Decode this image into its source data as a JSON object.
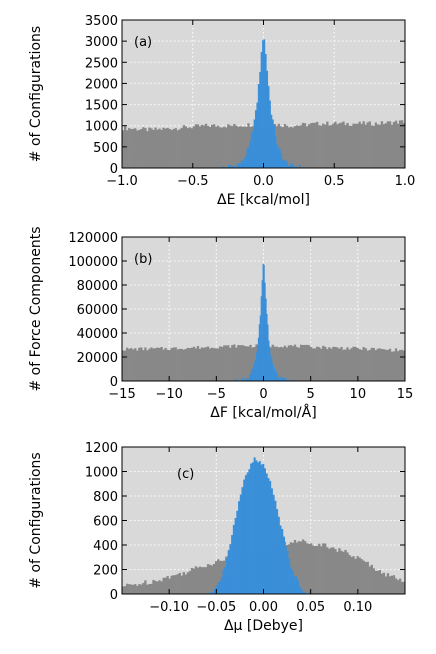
{
  "chart_data": [
    {
      "type": "bar",
      "panel_label": "(a)",
      "xlabel": "ΔE [kcal/mol]",
      "ylabel": "# of Configurations",
      "xlim": [
        -1.0,
        1.0
      ],
      "ylim": [
        0,
        3500
      ],
      "xticks": [
        "−1.0",
        "−0.5",
        "0.0",
        "0.5",
        "1.0"
      ],
      "xtick_values": [
        -1.0,
        -0.5,
        0.0,
        0.5,
        1.0
      ],
      "yticks": [
        "0",
        "500",
        "1000",
        "1500",
        "2000",
        "2500",
        "3000",
        "3500"
      ],
      "ytick_values": [
        0,
        500,
        1000,
        1500,
        2000,
        2500,
        3000,
        3500
      ],
      "grid": true,
      "series": [
        {
          "color": "#888888",
          "x": [
            -1.0,
            -0.8,
            -0.6,
            -0.4,
            -0.2,
            0.0,
            0.2,
            0.4,
            0.6,
            0.8,
            1.0
          ],
          "y": [
            950,
            900,
            950,
            1000,
            1000,
            1050,
            1000,
            1050,
            1050,
            1050,
            1100
          ]
        },
        {
          "color": "#3a8fd9",
          "x": [
            -0.3,
            -0.2,
            -0.15,
            -0.1,
            -0.05,
            -0.02,
            0.0,
            0.02,
            0.05,
            0.1,
            0.15,
            0.2,
            0.3
          ],
          "y": [
            0,
            50,
            150,
            500,
            1400,
            2500,
            3250,
            2500,
            1400,
            500,
            150,
            50,
            0
          ]
        }
      ]
    },
    {
      "type": "bar",
      "panel_label": "(b)",
      "xlabel": "ΔF [kcal/mol/Å]",
      "ylabel": "# of Force Components",
      "xlim": [
        -15,
        15
      ],
      "ylim": [
        0,
        120000
      ],
      "xticks": [
        "−15",
        "−10",
        "−5",
        "0",
        "5",
        "10",
        "15"
      ],
      "xtick_values": [
        -15,
        -10,
        -5,
        0,
        5,
        10,
        15
      ],
      "yticks": [
        "0",
        "20000",
        "40000",
        "60000",
        "80000",
        "100000",
        "120000"
      ],
      "ytick_values": [
        0,
        20000,
        40000,
        60000,
        80000,
        100000,
        120000
      ],
      "grid": true,
      "series": [
        {
          "color": "#888888",
          "x": [
            -15,
            -10,
            -5,
            -2,
            0,
            2,
            5,
            10,
            15
          ],
          "y": [
            26500,
            27000,
            28500,
            29500,
            29000,
            29500,
            28500,
            27000,
            25500
          ]
        },
        {
          "color": "#3a8fd9",
          "x": [
            -3,
            -2,
            -1.5,
            -1,
            -0.6,
            -0.3,
            0,
            0.3,
            0.6,
            1,
            1.5,
            2,
            3
          ],
          "y": [
            0,
            1500,
            4000,
            12000,
            30000,
            62000,
            103000,
            62000,
            30000,
            12000,
            4000,
            1500,
            0
          ]
        }
      ]
    },
    {
      "type": "bar",
      "panel_label": "(c)",
      "xlabel": "Δμ [Debye]",
      "ylabel": "# of Configurations",
      "xlim": [
        -0.15,
        0.15
      ],
      "ylim": [
        0,
        1200
      ],
      "xticks": [
        "−0.10",
        "−0.05",
        "0.00",
        "0.05",
        "0.10"
      ],
      "xtick_values": [
        -0.1,
        -0.05,
        0.0,
        0.05,
        0.1
      ],
      "yticks": [
        "0",
        "200",
        "400",
        "600",
        "800",
        "1000",
        "1200"
      ],
      "ytick_values": [
        0,
        200,
        400,
        600,
        800,
        1000,
        1200
      ],
      "grid": true,
      "series": [
        {
          "color": "#888888",
          "x": [
            -0.15,
            -0.12,
            -0.09,
            -0.06,
            -0.04,
            -0.02,
            0.0,
            0.02,
            0.04,
            0.05,
            0.07,
            0.09,
            0.11,
            0.13,
            0.15
          ],
          "y": [
            60,
            100,
            160,
            240,
            290,
            330,
            380,
            410,
            430,
            420,
            390,
            330,
            250,
            160,
            100
          ]
        },
        {
          "color": "#3a8fd9",
          "x": [
            -0.06,
            -0.05,
            -0.04,
            -0.03,
            -0.02,
            -0.01,
            0.0,
            0.01,
            0.02,
            0.03,
            0.04,
            0.05
          ],
          "y": [
            0,
            50,
            250,
            600,
            950,
            1100,
            1050,
            850,
            500,
            200,
            50,
            0
          ]
        }
      ]
    }
  ]
}
